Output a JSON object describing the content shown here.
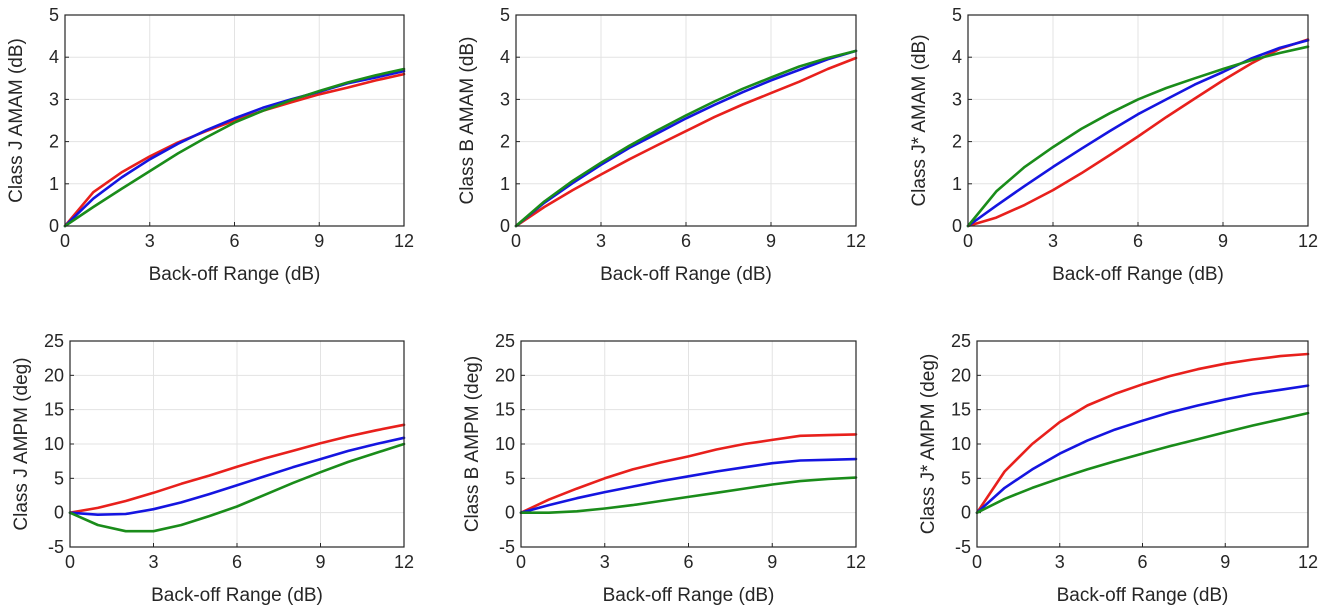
{
  "colors": {
    "red": "#e8201c",
    "blue": "#1515e0",
    "green": "#1a8c1a",
    "grid": "#e3e3e3",
    "axis": "#262626"
  },
  "chart_data": [
    {
      "type": "line",
      "grid": true,
      "legend": "none",
      "xlabel": "Back-off Range (dB)",
      "ylabel": "Class J AMAM (dB)",
      "xlim": [
        0,
        12
      ],
      "ylim": [
        0,
        5
      ],
      "xticks": [
        "0",
        "3",
        "6",
        "9",
        "12"
      ],
      "yticks": [
        "0",
        "1",
        "2",
        "3",
        "4",
        "5"
      ],
      "series": [
        {
          "color": "red",
          "points": [
            [
              0,
              0
            ],
            [
              1,
              0.8
            ],
            [
              2,
              1.27
            ],
            [
              3,
              1.65
            ],
            [
              4,
              1.98
            ],
            [
              5,
              2.25
            ],
            [
              6,
              2.5
            ],
            [
              7,
              2.73
            ],
            [
              8,
              2.93
            ],
            [
              9,
              3.12
            ],
            [
              10,
              3.28
            ],
            [
              11,
              3.45
            ],
            [
              12,
              3.6
            ]
          ]
        },
        {
          "color": "blue",
          "points": [
            [
              0,
              0
            ],
            [
              1,
              0.65
            ],
            [
              2,
              1.15
            ],
            [
              3,
              1.58
            ],
            [
              4,
              1.95
            ],
            [
              5,
              2.27
            ],
            [
              6,
              2.55
            ],
            [
              7,
              2.8
            ],
            [
              8,
              3.0
            ],
            [
              9,
              3.18
            ],
            [
              10,
              3.38
            ],
            [
              11,
              3.52
            ],
            [
              12,
              3.67
            ]
          ]
        },
        {
          "color": "green",
          "points": [
            [
              0,
              0
            ],
            [
              1,
              0.45
            ],
            [
              2,
              0.88
            ],
            [
              3,
              1.3
            ],
            [
              4,
              1.72
            ],
            [
              5,
              2.1
            ],
            [
              6,
              2.45
            ],
            [
              7,
              2.73
            ],
            [
              8,
              2.98
            ],
            [
              9,
              3.2
            ],
            [
              10,
              3.4
            ],
            [
              11,
              3.57
            ],
            [
              12,
              3.72
            ]
          ]
        }
      ]
    },
    {
      "type": "line",
      "grid": true,
      "legend": "none",
      "xlabel": "Back-off Range (dB)",
      "ylabel": "Class B AMAM (dB)",
      "xlim": [
        0,
        12
      ],
      "ylim": [
        0,
        5
      ],
      "xticks": [
        "0",
        "3",
        "6",
        "9",
        "12"
      ],
      "yticks": [
        "0",
        "1",
        "2",
        "3",
        "4",
        "5"
      ],
      "series": [
        {
          "color": "red",
          "points": [
            [
              0,
              0
            ],
            [
              1,
              0.45
            ],
            [
              2,
              0.85
            ],
            [
              3,
              1.22
            ],
            [
              4,
              1.58
            ],
            [
              5,
              1.92
            ],
            [
              6,
              2.25
            ],
            [
              7,
              2.58
            ],
            [
              8,
              2.88
            ],
            [
              9,
              3.15
            ],
            [
              10,
              3.42
            ],
            [
              11,
              3.72
            ],
            [
              12,
              3.98
            ]
          ]
        },
        {
          "color": "blue",
          "points": [
            [
              0,
              0
            ],
            [
              1,
              0.55
            ],
            [
              2,
              1.02
            ],
            [
              3,
              1.45
            ],
            [
              4,
              1.85
            ],
            [
              5,
              2.2
            ],
            [
              6,
              2.55
            ],
            [
              7,
              2.87
            ],
            [
              8,
              3.17
            ],
            [
              9,
              3.45
            ],
            [
              10,
              3.7
            ],
            [
              11,
              3.95
            ],
            [
              12,
              4.15
            ]
          ]
        },
        {
          "color": "green",
          "points": [
            [
              0,
              0
            ],
            [
              1,
              0.58
            ],
            [
              2,
              1.07
            ],
            [
              3,
              1.5
            ],
            [
              4,
              1.9
            ],
            [
              5,
              2.27
            ],
            [
              6,
              2.62
            ],
            [
              7,
              2.95
            ],
            [
              8,
              3.25
            ],
            [
              9,
              3.52
            ],
            [
              10,
              3.78
            ],
            [
              11,
              3.98
            ],
            [
              12,
              4.15
            ]
          ]
        }
      ]
    },
    {
      "type": "line",
      "grid": true,
      "legend": "none",
      "xlabel": "Back-off Range (dB)",
      "ylabel": "Class J* AMAM (dB)",
      "xlim": [
        0,
        12
      ],
      "ylim": [
        0,
        5
      ],
      "xticks": [
        "0",
        "3",
        "6",
        "9",
        "12"
      ],
      "yticks": [
        "0",
        "1",
        "2",
        "3",
        "4",
        "5"
      ],
      "series": [
        {
          "color": "red",
          "points": [
            [
              0,
              0
            ],
            [
              1,
              0.2
            ],
            [
              2,
              0.5
            ],
            [
              3,
              0.85
            ],
            [
              4,
              1.25
            ],
            [
              5,
              1.68
            ],
            [
              6,
              2.12
            ],
            [
              7,
              2.58
            ],
            [
              8,
              3.02
            ],
            [
              9,
              3.45
            ],
            [
              10,
              3.85
            ],
            [
              11,
              4.2
            ],
            [
              12,
              4.42
            ]
          ]
        },
        {
          "color": "blue",
          "points": [
            [
              0,
              0
            ],
            [
              1,
              0.48
            ],
            [
              2,
              0.95
            ],
            [
              3,
              1.4
            ],
            [
              4,
              1.83
            ],
            [
              5,
              2.25
            ],
            [
              6,
              2.65
            ],
            [
              7,
              3.0
            ],
            [
              8,
              3.35
            ],
            [
              9,
              3.65
            ],
            [
              10,
              3.97
            ],
            [
              11,
              4.22
            ],
            [
              12,
              4.4
            ]
          ]
        },
        {
          "color": "green",
          "points": [
            [
              0,
              0
            ],
            [
              1,
              0.82
            ],
            [
              2,
              1.4
            ],
            [
              3,
              1.87
            ],
            [
              4,
              2.3
            ],
            [
              5,
              2.67
            ],
            [
              6,
              3.0
            ],
            [
              7,
              3.27
            ],
            [
              8,
              3.5
            ],
            [
              9,
              3.72
            ],
            [
              10,
              3.93
            ],
            [
              11,
              4.1
            ],
            [
              12,
              4.25
            ]
          ]
        }
      ]
    },
    {
      "type": "line",
      "grid": true,
      "legend": "none",
      "xlabel": "Back-off Range (dB)",
      "ylabel": "Class J AMPM (deg)",
      "xlim": [
        0,
        12
      ],
      "ylim": [
        -5,
        25
      ],
      "xticks": [
        "0",
        "3",
        "6",
        "9",
        "12"
      ],
      "yticks": [
        "-5",
        "0",
        "5",
        "10",
        "15",
        "20",
        "25"
      ],
      "series": [
        {
          "color": "red",
          "points": [
            [
              0,
              0
            ],
            [
              1,
              0.7
            ],
            [
              2,
              1.7
            ],
            [
              3,
              2.9
            ],
            [
              4,
              4.2
            ],
            [
              5,
              5.4
            ],
            [
              6,
              6.7
            ],
            [
              7,
              7.9
            ],
            [
              8,
              9.0
            ],
            [
              9,
              10.1
            ],
            [
              10,
              11.1
            ],
            [
              11,
              12.0
            ],
            [
              12,
              12.8
            ]
          ]
        },
        {
          "color": "blue",
          "points": [
            [
              0,
              0
            ],
            [
              1,
              -0.3
            ],
            [
              2,
              -0.2
            ],
            [
              3,
              0.5
            ],
            [
              4,
              1.5
            ],
            [
              5,
              2.7
            ],
            [
              6,
              4.0
            ],
            [
              7,
              5.3
            ],
            [
              8,
              6.6
            ],
            [
              9,
              7.8
            ],
            [
              10,
              9.0
            ],
            [
              11,
              10.0
            ],
            [
              12,
              10.9
            ]
          ]
        },
        {
          "color": "green",
          "points": [
            [
              0,
              0
            ],
            [
              1,
              -1.8
            ],
            [
              2,
              -2.7
            ],
            [
              3,
              -2.7
            ],
            [
              4,
              -1.8
            ],
            [
              5,
              -0.5
            ],
            [
              6,
              0.9
            ],
            [
              7,
              2.6
            ],
            [
              8,
              4.3
            ],
            [
              9,
              5.9
            ],
            [
              10,
              7.4
            ],
            [
              11,
              8.7
            ],
            [
              12,
              10.0
            ]
          ]
        }
      ]
    },
    {
      "type": "line",
      "grid": true,
      "legend": "none",
      "xlabel": "Back-off Range (dB)",
      "ylabel": "Class B AMPM (deg)",
      "xlim": [
        0,
        12
      ],
      "ylim": [
        -5,
        25
      ],
      "xticks": [
        "0",
        "3",
        "6",
        "9",
        "12"
      ],
      "yticks": [
        "-5",
        "0",
        "5",
        "10",
        "15",
        "20",
        "25"
      ],
      "series": [
        {
          "color": "red",
          "points": [
            [
              0,
              0
            ],
            [
              1,
              1.9
            ],
            [
              2,
              3.5
            ],
            [
              3,
              5.0
            ],
            [
              4,
              6.3
            ],
            [
              5,
              7.3
            ],
            [
              6,
              8.2
            ],
            [
              7,
              9.2
            ],
            [
              8,
              10.0
            ],
            [
              9,
              10.6
            ],
            [
              10,
              11.2
            ],
            [
              11,
              11.3
            ],
            [
              12,
              11.4
            ]
          ]
        },
        {
          "color": "blue",
          "points": [
            [
              0,
              0
            ],
            [
              1,
              1.1
            ],
            [
              2,
              2.1
            ],
            [
              3,
              3.0
            ],
            [
              4,
              3.8
            ],
            [
              5,
              4.6
            ],
            [
              6,
              5.3
            ],
            [
              7,
              6.0
            ],
            [
              8,
              6.6
            ],
            [
              9,
              7.2
            ],
            [
              10,
              7.6
            ],
            [
              11,
              7.7
            ],
            [
              12,
              7.8
            ]
          ]
        },
        {
          "color": "green",
          "points": [
            [
              0,
              0
            ],
            [
              1,
              0
            ],
            [
              2,
              0.2
            ],
            [
              3,
              0.6
            ],
            [
              4,
              1.1
            ],
            [
              5,
              1.7
            ],
            [
              6,
              2.3
            ],
            [
              7,
              2.9
            ],
            [
              8,
              3.5
            ],
            [
              9,
              4.1
            ],
            [
              10,
              4.6
            ],
            [
              11,
              4.9
            ],
            [
              12,
              5.1
            ]
          ]
        }
      ]
    },
    {
      "type": "line",
      "grid": true,
      "legend": "none",
      "xlabel": "Back-off Range (dB)",
      "ylabel": "Class J* AMPM (deg)",
      "xlim": [
        0,
        12
      ],
      "ylim": [
        -5,
        25
      ],
      "xticks": [
        "0",
        "3",
        "6",
        "9",
        "12"
      ],
      "yticks": [
        "-5",
        "0",
        "5",
        "10",
        "15",
        "20",
        "25"
      ],
      "series": [
        {
          "color": "red",
          "points": [
            [
              0,
              0
            ],
            [
              1,
              6.0
            ],
            [
              2,
              10.0
            ],
            [
              3,
              13.2
            ],
            [
              4,
              15.6
            ],
            [
              5,
              17.3
            ],
            [
              6,
              18.7
            ],
            [
              7,
              19.9
            ],
            [
              8,
              20.9
            ],
            [
              9,
              21.7
            ],
            [
              10,
              22.3
            ],
            [
              11,
              22.8
            ],
            [
              12,
              23.1
            ]
          ]
        },
        {
          "color": "blue",
          "points": [
            [
              0,
              0
            ],
            [
              1,
              3.6
            ],
            [
              2,
              6.3
            ],
            [
              3,
              8.6
            ],
            [
              4,
              10.5
            ],
            [
              5,
              12.1
            ],
            [
              6,
              13.4
            ],
            [
              7,
              14.6
            ],
            [
              8,
              15.6
            ],
            [
              9,
              16.5
            ],
            [
              10,
              17.3
            ],
            [
              11,
              17.9
            ],
            [
              12,
              18.5
            ]
          ]
        },
        {
          "color": "green",
          "points": [
            [
              0,
              0
            ],
            [
              1,
              2.0
            ],
            [
              2,
              3.6
            ],
            [
              3,
              5.0
            ],
            [
              4,
              6.3
            ],
            [
              5,
              7.5
            ],
            [
              6,
              8.6
            ],
            [
              7,
              9.7
            ],
            [
              8,
              10.7
            ],
            [
              9,
              11.7
            ],
            [
              10,
              12.7
            ],
            [
              11,
              13.6
            ],
            [
              12,
              14.5
            ]
          ]
        }
      ]
    }
  ]
}
